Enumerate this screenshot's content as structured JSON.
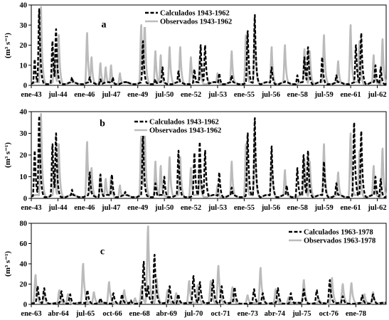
{
  "chart_data": [
    {
      "id": "a",
      "type": "line",
      "panel_label": "a",
      "ylabel": "(m³ s⁻¹)",
      "ylim": [
        0,
        40
      ],
      "yticks": [
        0,
        10,
        20,
        30,
        40
      ],
      "xlim": [
        1943.0,
        1963.0
      ],
      "x_ticks": [
        {
          "label": "ene-43",
          "x": 1943.0
        },
        {
          "label": "jul-44",
          "x": 1944.5
        },
        {
          "label": "ene-46",
          "x": 1946.0
        },
        {
          "label": "jul-47",
          "x": 1947.5
        },
        {
          "label": "ene-49",
          "x": 1949.0
        },
        {
          "label": "jul-50",
          "x": 1950.5
        },
        {
          "label": "ene-52",
          "x": 1952.0
        },
        {
          "label": "jul-53",
          "x": 1953.5
        },
        {
          "label": "ene-55",
          "x": 1955.0
        },
        {
          "label": "jul-56",
          "x": 1956.5
        },
        {
          "label": "ene-58",
          "x": 1958.0
        },
        {
          "label": "jul-59",
          "x": 1959.5
        },
        {
          "label": "ene-61",
          "x": 1961.0
        },
        {
          "label": "jul-62",
          "x": 1962.5
        }
      ],
      "legend_position": "top-center",
      "grid": false,
      "series": [
        {
          "name": "Calculados 1943-1962",
          "color": "#000000",
          "style": "dashed",
          "peaks": [
            {
              "x": 1943.2,
              "y": 13
            },
            {
              "x": 1943.45,
              "y": 38
            },
            {
              "x": 1944.2,
              "y": 22
            },
            {
              "x": 1944.4,
              "y": 28
            },
            {
              "x": 1945.3,
              "y": 4
            },
            {
              "x": 1946.3,
              "y": 4
            },
            {
              "x": 1946.9,
              "y": 3
            },
            {
              "x": 1947.6,
              "y": 4
            },
            {
              "x": 1948.4,
              "y": 2
            },
            {
              "x": 1949.3,
              "y": 22
            },
            {
              "x": 1950.0,
              "y": 3
            },
            {
              "x": 1950.4,
              "y": 9
            },
            {
              "x": 1951.3,
              "y": 7
            },
            {
              "x": 1952.2,
              "y": 8
            },
            {
              "x": 1952.55,
              "y": 20
            },
            {
              "x": 1952.8,
              "y": 20
            },
            {
              "x": 1953.6,
              "y": 6
            },
            {
              "x": 1954.3,
              "y": 5
            },
            {
              "x": 1955.2,
              "y": 27
            },
            {
              "x": 1955.6,
              "y": 35
            },
            {
              "x": 1956.55,
              "y": 9
            },
            {
              "x": 1957.3,
              "y": 2
            },
            {
              "x": 1958.0,
              "y": 5
            },
            {
              "x": 1958.4,
              "y": 14
            },
            {
              "x": 1958.6,
              "y": 19
            },
            {
              "x": 1959.4,
              "y": 14
            },
            {
              "x": 1960.2,
              "y": 5
            },
            {
              "x": 1961.3,
              "y": 20
            },
            {
              "x": 1961.6,
              "y": 26
            },
            {
              "x": 1962.4,
              "y": 10
            },
            {
              "x": 1962.7,
              "y": 9
            }
          ]
        },
        {
          "name": "Observados 1943-1962",
          "color": "#bbbbbb",
          "style": "solid",
          "peaks": [
            {
              "x": 1943.55,
              "y": 39
            },
            {
              "x": 1944.3,
              "y": 16
            },
            {
              "x": 1944.55,
              "y": 25
            },
            {
              "x": 1945.4,
              "y": 2
            },
            {
              "x": 1946.15,
              "y": 26
            },
            {
              "x": 1946.4,
              "y": 14
            },
            {
              "x": 1946.9,
              "y": 11
            },
            {
              "x": 1947.2,
              "y": 9
            },
            {
              "x": 1947.5,
              "y": 10
            },
            {
              "x": 1948.0,
              "y": 6
            },
            {
              "x": 1949.2,
              "y": 30
            },
            {
              "x": 1949.4,
              "y": 32
            },
            {
              "x": 1950.0,
              "y": 17
            },
            {
              "x": 1950.3,
              "y": 15
            },
            {
              "x": 1950.8,
              "y": 19
            },
            {
              "x": 1951.4,
              "y": 19
            },
            {
              "x": 1952.0,
              "y": 14
            },
            {
              "x": 1952.5,
              "y": 14
            },
            {
              "x": 1953.0,
              "y": 2
            },
            {
              "x": 1953.5,
              "y": 6
            },
            {
              "x": 1954.3,
              "y": 17
            },
            {
              "x": 1955.1,
              "y": 25
            },
            {
              "x": 1955.6,
              "y": 29
            },
            {
              "x": 1956.55,
              "y": 19
            },
            {
              "x": 1957.3,
              "y": 20
            },
            {
              "x": 1958.4,
              "y": 18
            },
            {
              "x": 1958.7,
              "y": 17
            },
            {
              "x": 1959.5,
              "y": 25
            },
            {
              "x": 1960.3,
              "y": 12
            },
            {
              "x": 1961.0,
              "y": 30
            },
            {
              "x": 1961.5,
              "y": 22
            },
            {
              "x": 1962.3,
              "y": 15
            },
            {
              "x": 1962.8,
              "y": 23
            }
          ]
        }
      ]
    },
    {
      "id": "b",
      "type": "line",
      "panel_label": "b",
      "ylabel": "(m³ s⁻¹)",
      "ylim": [
        0,
        40
      ],
      "yticks": [
        0,
        10,
        20,
        30,
        40
      ],
      "xlim": [
        1943.0,
        1963.0
      ],
      "x_ticks": [
        {
          "label": "ene-43",
          "x": 1943.0
        },
        {
          "label": "jul-44",
          "x": 1944.5
        },
        {
          "label": "ene-46",
          "x": 1946.0
        },
        {
          "label": "jul-47",
          "x": 1947.5
        },
        {
          "label": "ene-49",
          "x": 1949.0
        },
        {
          "label": "jul-50",
          "x": 1950.5
        },
        {
          "label": "ene-52",
          "x": 1952.0
        },
        {
          "label": "jul-53",
          "x": 1953.5
        },
        {
          "label": "ene-55",
          "x": 1955.0
        },
        {
          "label": "jul-56",
          "x": 1956.5
        },
        {
          "label": "ene-58",
          "x": 1958.0
        },
        {
          "label": "jul-59",
          "x": 1959.5
        },
        {
          "label": "ene-61",
          "x": 1961.0
        },
        {
          "label": "jul-62",
          "x": 1962.5
        }
      ],
      "legend_position": "top-left",
      "grid": false,
      "series": [
        {
          "name": "Calculados 1943-1962",
          "color": "#000000",
          "style": "dashed",
          "peaks": [
            {
              "x": 1943.2,
              "y": 22
            },
            {
              "x": 1943.45,
              "y": 38
            },
            {
              "x": 1944.2,
              "y": 25
            },
            {
              "x": 1944.4,
              "y": 30
            },
            {
              "x": 1945.3,
              "y": 4
            },
            {
              "x": 1946.3,
              "y": 12
            },
            {
              "x": 1946.9,
              "y": 11
            },
            {
              "x": 1947.55,
              "y": 11
            },
            {
              "x": 1948.3,
              "y": 3
            },
            {
              "x": 1949.3,
              "y": 30
            },
            {
              "x": 1950.0,
              "y": 7
            },
            {
              "x": 1950.5,
              "y": 10
            },
            {
              "x": 1951.3,
              "y": 22
            },
            {
              "x": 1952.2,
              "y": 21
            },
            {
              "x": 1952.5,
              "y": 26
            },
            {
              "x": 1952.8,
              "y": 22
            },
            {
              "x": 1953.6,
              "y": 12
            },
            {
              "x": 1954.3,
              "y": 5
            },
            {
              "x": 1955.2,
              "y": 30
            },
            {
              "x": 1955.6,
              "y": 37
            },
            {
              "x": 1956.55,
              "y": 24
            },
            {
              "x": 1957.4,
              "y": 6
            },
            {
              "x": 1958.0,
              "y": 14
            },
            {
              "x": 1958.35,
              "y": 20
            },
            {
              "x": 1958.6,
              "y": 22
            },
            {
              "x": 1959.5,
              "y": 17
            },
            {
              "x": 1960.2,
              "y": 7
            },
            {
              "x": 1961.2,
              "y": 35
            },
            {
              "x": 1961.6,
              "y": 31
            },
            {
              "x": 1962.4,
              "y": 10
            },
            {
              "x": 1962.7,
              "y": 9
            }
          ]
        },
        {
          "name": "Observados 1943-1962",
          "color": "#bbbbbb",
          "style": "solid",
          "peaks": [
            {
              "x": 1943.55,
              "y": 39
            },
            {
              "x": 1944.3,
              "y": 16
            },
            {
              "x": 1944.55,
              "y": 25
            },
            {
              "x": 1945.4,
              "y": 2
            },
            {
              "x": 1946.15,
              "y": 26
            },
            {
              "x": 1946.4,
              "y": 14
            },
            {
              "x": 1946.9,
              "y": 11
            },
            {
              "x": 1947.2,
              "y": 9
            },
            {
              "x": 1947.5,
              "y": 10
            },
            {
              "x": 1948.0,
              "y": 6
            },
            {
              "x": 1949.2,
              "y": 30
            },
            {
              "x": 1949.4,
              "y": 32
            },
            {
              "x": 1950.0,
              "y": 17
            },
            {
              "x": 1950.3,
              "y": 15
            },
            {
              "x": 1950.8,
              "y": 19
            },
            {
              "x": 1951.4,
              "y": 19
            },
            {
              "x": 1952.0,
              "y": 14
            },
            {
              "x": 1952.5,
              "y": 14
            },
            {
              "x": 1953.0,
              "y": 2
            },
            {
              "x": 1953.5,
              "y": 6
            },
            {
              "x": 1954.3,
              "y": 17
            },
            {
              "x": 1955.1,
              "y": 25
            },
            {
              "x": 1955.6,
              "y": 29
            },
            {
              "x": 1956.55,
              "y": 19
            },
            {
              "x": 1957.3,
              "y": 13
            },
            {
              "x": 1958.4,
              "y": 18
            },
            {
              "x": 1958.7,
              "y": 17
            },
            {
              "x": 1959.5,
              "y": 25
            },
            {
              "x": 1960.3,
              "y": 12
            },
            {
              "x": 1961.0,
              "y": 30
            },
            {
              "x": 1961.5,
              "y": 22
            },
            {
              "x": 1962.3,
              "y": 15
            },
            {
              "x": 1962.8,
              "y": 23
            }
          ]
        }
      ]
    },
    {
      "id": "c",
      "type": "line",
      "panel_label": "c",
      "ylabel": "(m³ s⁻¹)",
      "ylim": [
        0,
        80
      ],
      "yticks": [
        0,
        20,
        40,
        60,
        80
      ],
      "xlim": [
        1963.0,
        1979.4
      ],
      "x_ticks": [
        {
          "label": "ene-63",
          "x": 1963.0
        },
        {
          "label": "abr-64",
          "x": 1964.25
        },
        {
          "label": "jul-65",
          "x": 1965.5
        },
        {
          "label": "oct-66",
          "x": 1966.75
        },
        {
          "label": "ene-68",
          "x": 1968.0
        },
        {
          "label": "abr-69",
          "x": 1969.25
        },
        {
          "label": "jul-70",
          "x": 1970.5
        },
        {
          "label": "oct-71",
          "x": 1971.75
        },
        {
          "label": "ene-73",
          "x": 1973.0
        },
        {
          "label": "abr-74",
          "x": 1974.25
        },
        {
          "label": "jul-75",
          "x": 1975.5
        },
        {
          "label": "oct-76",
          "x": 1976.75
        },
        {
          "label": "ene-78",
          "x": 1978.0
        }
      ],
      "legend_position": "top-right",
      "grid": false,
      "series": [
        {
          "name": "Calculados 1963-1978",
          "color": "#000000",
          "style": "dashed",
          "peaks": [
            {
              "x": 1963.3,
              "y": 18
            },
            {
              "x": 1963.6,
              "y": 16
            },
            {
              "x": 1964.4,
              "y": 13
            },
            {
              "x": 1964.8,
              "y": 10
            },
            {
              "x": 1965.6,
              "y": 14
            },
            {
              "x": 1966.2,
              "y": 6
            },
            {
              "x": 1966.8,
              "y": 11
            },
            {
              "x": 1967.2,
              "y": 10
            },
            {
              "x": 1967.6,
              "y": 4
            },
            {
              "x": 1968.2,
              "y": 42
            },
            {
              "x": 1968.4,
              "y": 18
            },
            {
              "x": 1968.7,
              "y": 49
            },
            {
              "x": 1969.4,
              "y": 18
            },
            {
              "x": 1969.8,
              "y": 10
            },
            {
              "x": 1970.5,
              "y": 28
            },
            {
              "x": 1970.8,
              "y": 22
            },
            {
              "x": 1971.4,
              "y": 24
            },
            {
              "x": 1971.8,
              "y": 18
            },
            {
              "x": 1972.4,
              "y": 17
            },
            {
              "x": 1973.3,
              "y": 15
            },
            {
              "x": 1973.7,
              "y": 11
            },
            {
              "x": 1974.4,
              "y": 16
            },
            {
              "x": 1975.0,
              "y": 11
            },
            {
              "x": 1975.6,
              "y": 15
            },
            {
              "x": 1976.2,
              "y": 14
            },
            {
              "x": 1976.8,
              "y": 24
            },
            {
              "x": 1977.4,
              "y": 8
            },
            {
              "x": 1978.3,
              "y": 9
            },
            {
              "x": 1978.8,
              "y": 10
            }
          ]
        },
        {
          "name": "Observados 1963-1978",
          "color": "#bbbbbb",
          "style": "solid",
          "peaks": [
            {
              "x": 1963.2,
              "y": 29
            },
            {
              "x": 1963.6,
              "y": 10
            },
            {
              "x": 1964.3,
              "y": 14
            },
            {
              "x": 1964.7,
              "y": 10
            },
            {
              "x": 1965.4,
              "y": 40
            },
            {
              "x": 1965.9,
              "y": 12
            },
            {
              "x": 1966.6,
              "y": 22
            },
            {
              "x": 1967.3,
              "y": 14
            },
            {
              "x": 1967.8,
              "y": 6
            },
            {
              "x": 1968.1,
              "y": 18
            },
            {
              "x": 1968.4,
              "y": 77
            },
            {
              "x": 1968.8,
              "y": 25
            },
            {
              "x": 1969.3,
              "y": 14
            },
            {
              "x": 1969.7,
              "y": 11
            },
            {
              "x": 1970.3,
              "y": 23
            },
            {
              "x": 1970.7,
              "y": 19
            },
            {
              "x": 1971.3,
              "y": 23
            },
            {
              "x": 1971.65,
              "y": 38
            },
            {
              "x": 1972.3,
              "y": 17
            },
            {
              "x": 1973.0,
              "y": 9
            },
            {
              "x": 1973.6,
              "y": 36
            },
            {
              "x": 1974.3,
              "y": 15
            },
            {
              "x": 1974.9,
              "y": 7
            },
            {
              "x": 1975.6,
              "y": 24
            },
            {
              "x": 1976.3,
              "y": 5
            },
            {
              "x": 1976.9,
              "y": 26
            },
            {
              "x": 1977.4,
              "y": 20
            },
            {
              "x": 1977.8,
              "y": 21
            },
            {
              "x": 1978.4,
              "y": 10
            },
            {
              "x": 1978.8,
              "y": 12
            }
          ]
        }
      ]
    }
  ]
}
